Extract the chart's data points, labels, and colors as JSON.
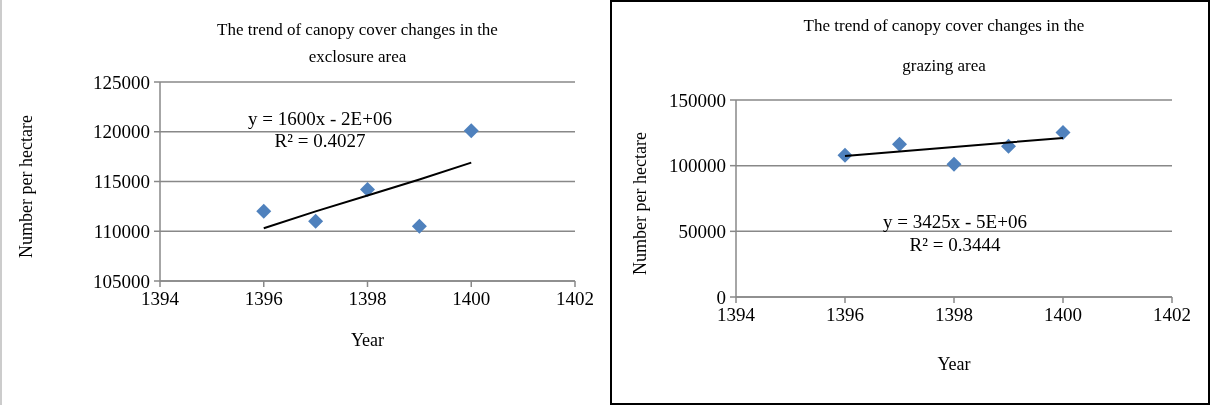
{
  "chart_data": [
    {
      "type": "scatter",
      "title": "The trend of canopy cover changes in the exclosure area",
      "xlabel": "Year",
      "ylabel": "Number per hectare",
      "xlim": [
        1394,
        1402
      ],
      "xticks": [
        1394,
        1396,
        1398,
        1400,
        1402
      ],
      "ylim": [
        105000,
        125000
      ],
      "yticks": [
        105000,
        110000,
        115000,
        120000,
        125000
      ],
      "grid": "y",
      "marker": "diamond",
      "x": [
        1396,
        1397,
        1398,
        1399,
        1400
      ],
      "series": [
        {
          "color": "#4f81bd",
          "values": [
            112000,
            111000,
            114200,
            110500,
            120100
          ]
        },
        {
          "type": "line",
          "color": "#000000",
          "marker": "none",
          "values": [
            110300,
            112000,
            113600,
            115200,
            116900
          ]
        }
      ],
      "annotations": [
        "y = 1600x - 2E+06",
        "R² = 0.4027"
      ]
    },
    {
      "type": "scatter",
      "title": "The trend of canopy cover changes in the grazing area",
      "xlabel": "Year",
      "ylabel": "Number per hectare",
      "xlim": [
        1394,
        1402
      ],
      "xticks": [
        1394,
        1396,
        1398,
        1400,
        1402
      ],
      "ylim": [
        0,
        150000
      ],
      "yticks": [
        0,
        50000,
        100000,
        150000
      ],
      "grid": "y",
      "marker": "diamond",
      "x": [
        1396,
        1397,
        1398,
        1399,
        1400
      ],
      "series": [
        {
          "color": "#4f81bd",
          "values": [
            108000,
            116300,
            101000,
            114700,
            125300
          ]
        },
        {
          "type": "line",
          "color": "#000000",
          "marker": "none",
          "values": [
            107400,
            110800,
            114300,
            117700,
            121100
          ]
        }
      ],
      "annotations": [
        "y = 3425x - 5E+06",
        "R² = 0.3444"
      ]
    }
  ]
}
